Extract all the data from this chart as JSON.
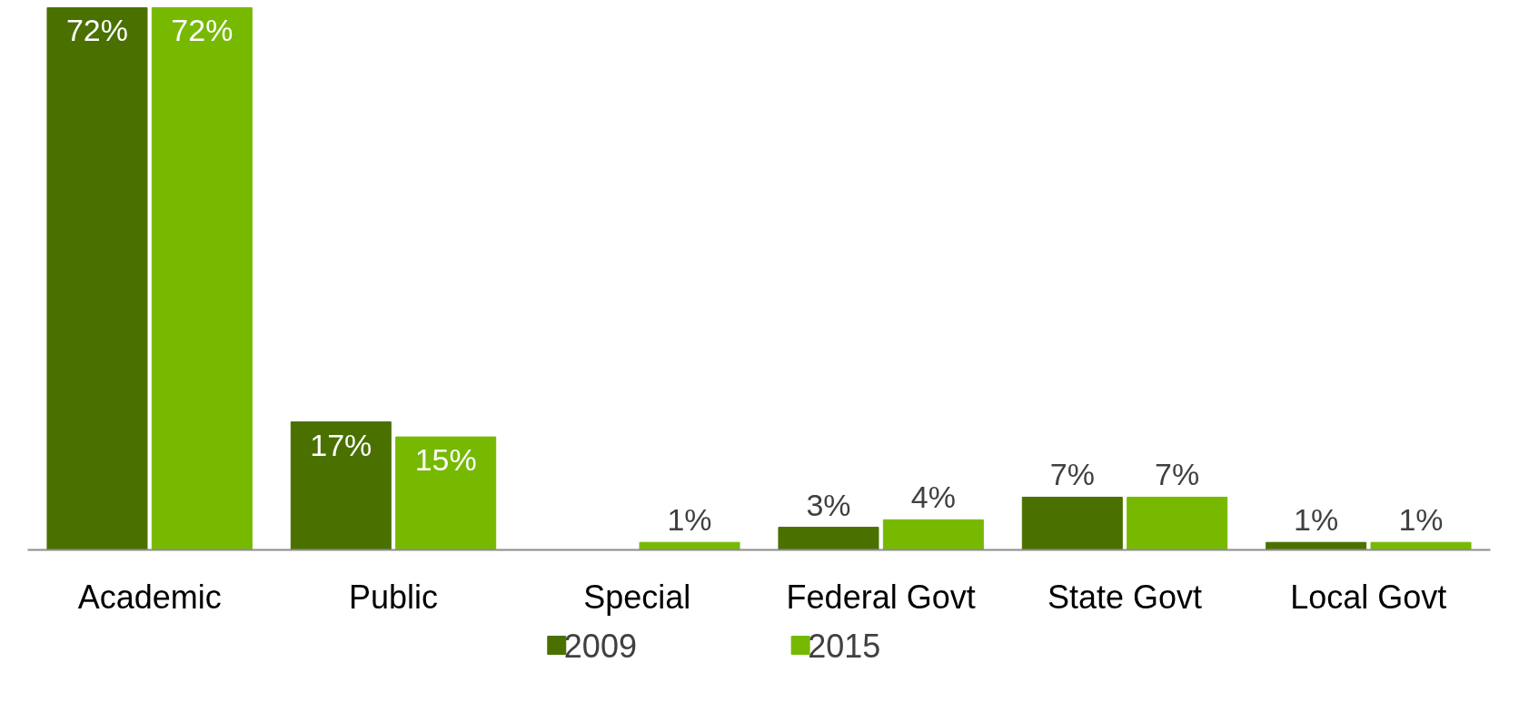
{
  "chart_data": {
    "type": "bar",
    "categories": [
      "Academic",
      "Public",
      "Special",
      "Federal Govt",
      "State Govt",
      "Local Govt"
    ],
    "series": [
      {
        "name": "2009",
        "color": "#4a7000",
        "values": [
          72,
          17,
          null,
          3,
          7,
          1
        ],
        "value_labels": [
          "72%",
          "17%",
          null,
          "3%",
          "7%",
          "1%"
        ]
      },
      {
        "name": "2015",
        "color": "#76b900",
        "values": [
          72,
          15,
          1,
          4,
          7,
          1
        ],
        "value_labels": [
          "72%",
          "15%",
          "1%",
          "4%",
          "7%",
          "1%"
        ]
      }
    ],
    "data_labels": true,
    "legend": "bottom",
    "grid": false
  }
}
